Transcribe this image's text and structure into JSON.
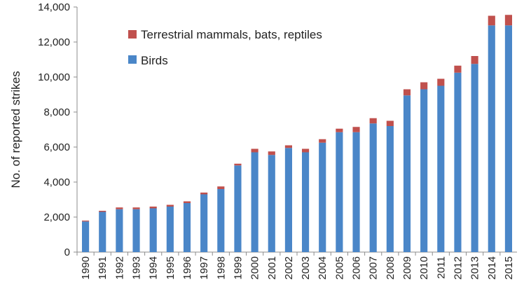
{
  "chart_data": {
    "type": "bar",
    "stacked": true,
    "categories": [
      "1990",
      "1991",
      "1992",
      "1993",
      "1994",
      "1995",
      "1996",
      "1997",
      "1998",
      "1999",
      "2000",
      "2001",
      "2002",
      "2003",
      "2004",
      "2005",
      "2006",
      "2007",
      "2008",
      "2009",
      "2010",
      "2011",
      "2012",
      "2013",
      "2014",
      "2015"
    ],
    "series": [
      {
        "name": "Birds",
        "color": "#4a86c8",
        "values": [
          1750,
          2300,
          2450,
          2450,
          2500,
          2600,
          2800,
          3300,
          3600,
          4950,
          5700,
          5550,
          5950,
          5700,
          6250,
          6850,
          6850,
          7350,
          7200,
          8950,
          9300,
          9500,
          10250,
          10750,
          12950,
          12950
        ]
      },
      {
        "name": "Terrestrial mammals, bats, reptiles",
        "color": "#c0504d",
        "values": [
          50,
          60,
          100,
          100,
          100,
          100,
          100,
          100,
          150,
          100,
          200,
          200,
          150,
          200,
          200,
          200,
          300,
          300,
          300,
          350,
          400,
          400,
          400,
          450,
          550,
          600
        ]
      }
    ],
    "ylabel": "No. of reported strikes",
    "xlabel": "",
    "ylim": [
      0,
      14000
    ],
    "yticks": [
      "0",
      "2,000",
      "4,000",
      "6,000",
      "8,000",
      "10,000",
      "12,000",
      "14,000"
    ],
    "grid": false,
    "legend_position": "top-left"
  }
}
